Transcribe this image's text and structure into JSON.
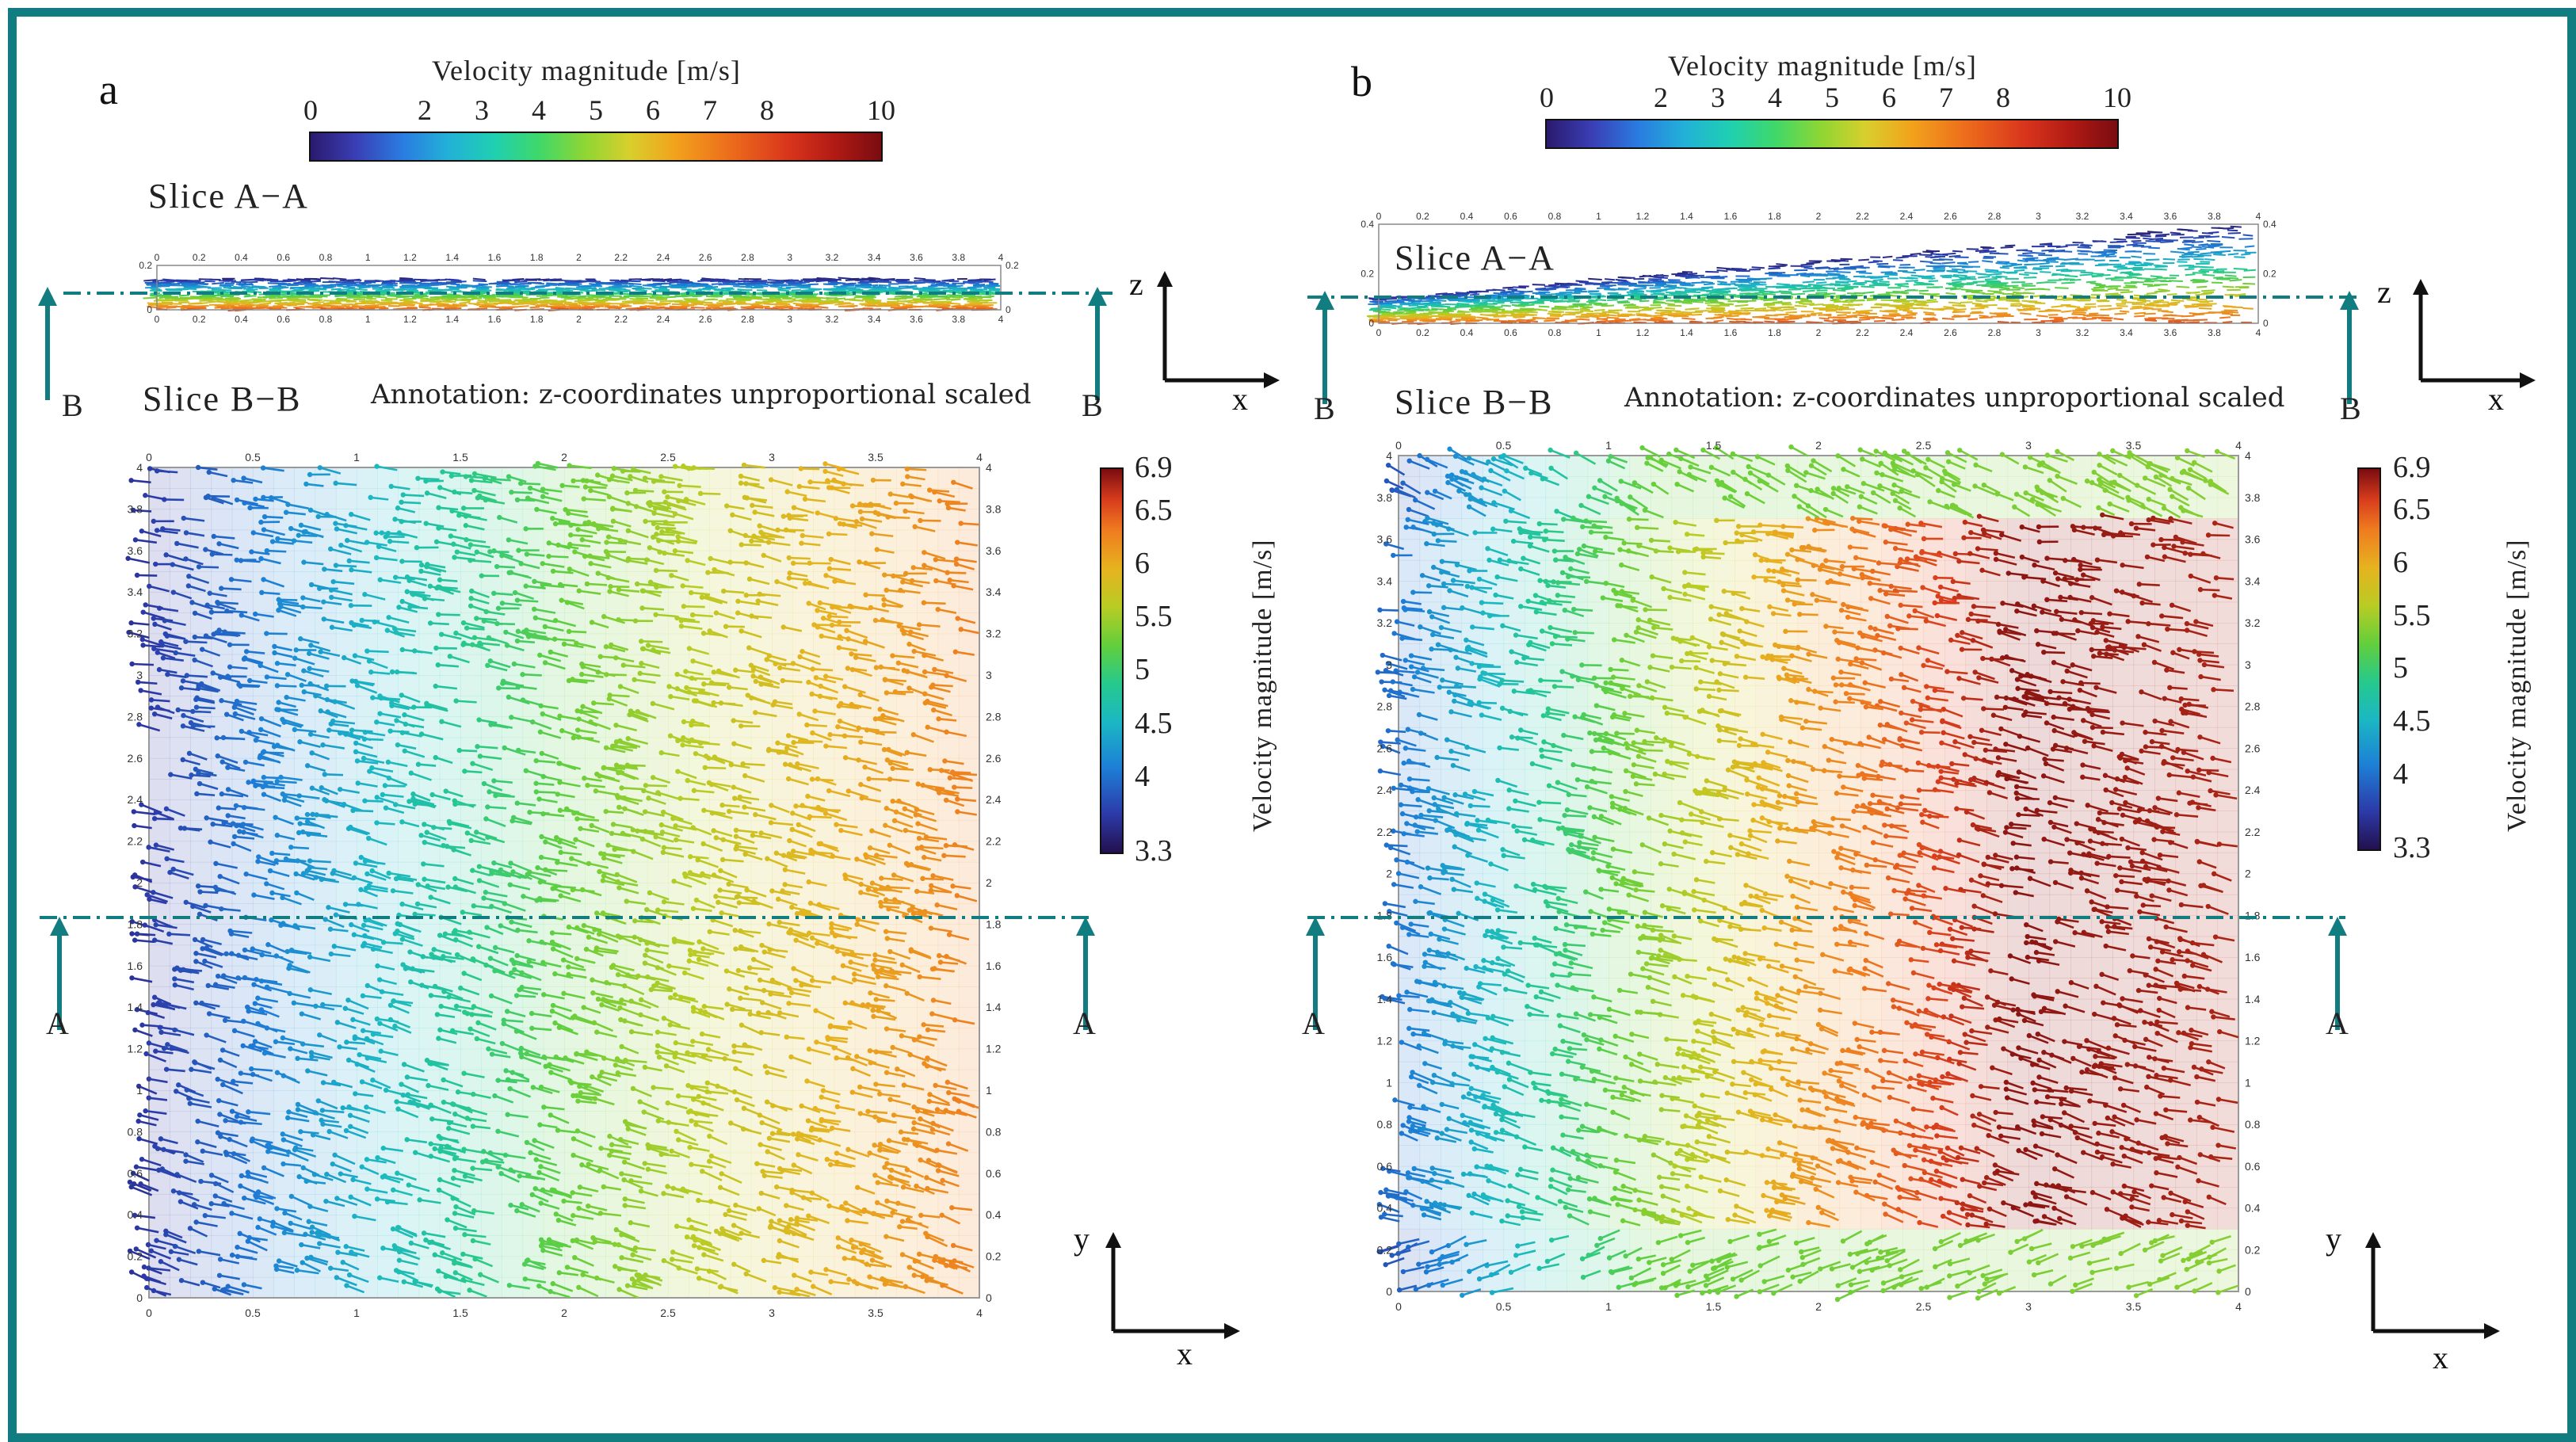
{
  "figure": {
    "border_color": "#127d80",
    "annotation": "Annotation: z-coordinates unproportional scaled",
    "slice_a_label": "Slice A−A",
    "slice_b_label": "Slice B−B",
    "cut_a": "A",
    "cut_b": "B",
    "axis_x": "x",
    "axis_y": "y",
    "axis_z": "z"
  },
  "panels": [
    {
      "letter": "a",
      "top_colorbar": {
        "title": "Velocity magnitude [m/s]",
        "ticks": [
          "0",
          "2",
          "3",
          "4",
          "5",
          "6",
          "7",
          "8",
          "10"
        ]
      },
      "side_colorbar": {
        "title": "Velocity magnitude [m/s]",
        "ticks": [
          "6.9",
          "6.5",
          "6",
          "5.5",
          "5",
          "4.5",
          "4",
          "3.3"
        ]
      }
    },
    {
      "letter": "b",
      "top_colorbar": {
        "title": "Velocity magnitude [m/s]",
        "ticks": [
          "0",
          "2",
          "3",
          "4",
          "5",
          "6",
          "7",
          "8",
          "10"
        ]
      },
      "side_colorbar": {
        "title": "Velocity magnitude [m/s]",
        "ticks": [
          "6.9",
          "6.5",
          "6",
          "5.5",
          "5",
          "4.5",
          "4",
          "3.3"
        ]
      }
    }
  ],
  "chart_data": [
    {
      "type": "heatmap",
      "panel": "a",
      "title": "Slice B−B",
      "x_ticks": [
        "0",
        "0.5",
        "1",
        "1.5",
        "2",
        "2.5",
        "3",
        "3.5",
        "4"
      ],
      "y_ticks": [
        "0",
        "0.2",
        "0.4",
        "0.6",
        "0.8",
        "1",
        "1.2",
        "1.4",
        "1.6",
        "1.8",
        "2",
        "2.2",
        "2.4",
        "2.6",
        "2.8",
        "3",
        "3.2",
        "3.4",
        "3.6",
        "3.8",
        "4"
      ],
      "xlim": [
        0,
        4
      ],
      "ylim": [
        0,
        4
      ],
      "colorbar_range": [
        3.3,
        6.9
      ],
      "description_of_field": "velocity increasing roughly linearly with x",
      "velocity_by_x": {
        "x": [
          0,
          1,
          2,
          3,
          4
        ],
        "v": [
          3.6,
          4.4,
          5.2,
          5.8,
          6.3
        ]
      }
    },
    {
      "type": "heatmap",
      "panel": "b",
      "title": "Slice B−B",
      "x_ticks": [
        "0",
        "0.5",
        "1",
        "1.5",
        "2",
        "2.5",
        "3",
        "3.5",
        "4"
      ],
      "y_ticks": [
        "0",
        "0.2",
        "0.4",
        "0.6",
        "0.8",
        "1",
        "1.2",
        "1.4",
        "1.6",
        "1.8",
        "2",
        "2.2",
        "2.4",
        "2.6",
        "2.8",
        "3",
        "3.2",
        "3.4",
        "3.6",
        "3.8",
        "4"
      ],
      "xlim": [
        0,
        4
      ],
      "ylim": [
        0,
        4
      ],
      "colorbar_range": [
        3.3,
        6.9
      ],
      "velocity_by_x": {
        "x": [
          0,
          1,
          2,
          3,
          4
        ],
        "v": [
          3.8,
          5.0,
          6.0,
          6.7,
          6.6
        ]
      },
      "inner_region": {
        "y": [
          0.3,
          3.7
        ],
        "peak_v": 6.9
      }
    },
    {
      "type": "heatmap",
      "panel": "a",
      "title": "Slice A−A",
      "x_ticks": [
        "0",
        "0.2",
        "0.4",
        "0.6",
        "0.8",
        "1",
        "1.2",
        "1.4",
        "1.6",
        "1.8",
        "2",
        "2.2",
        "2.4",
        "2.6",
        "2.8",
        "3",
        "3.2",
        "3.4",
        "3.6",
        "3.8",
        "4"
      ],
      "z_ticks": [
        "0",
        "0.2"
      ],
      "colorbar_range": [
        0,
        10
      ]
    },
    {
      "type": "heatmap",
      "panel": "b",
      "title": "Slice A−A",
      "x_ticks": [
        "0",
        "0.2",
        "0.4",
        "0.6",
        "0.8",
        "1",
        "1.2",
        "1.4",
        "1.6",
        "1.8",
        "2",
        "2.2",
        "2.4",
        "2.6",
        "2.8",
        "3",
        "3.2",
        "3.4",
        "3.6",
        "3.8",
        "4"
      ],
      "z_ticks": [
        "0",
        "0.2",
        "0.4"
      ],
      "colorbar_range": [
        0,
        10
      ]
    }
  ]
}
